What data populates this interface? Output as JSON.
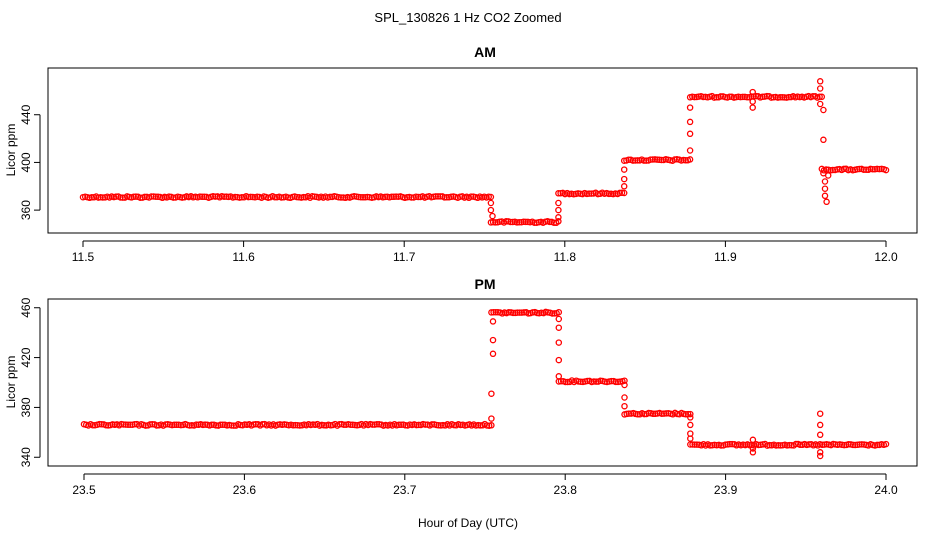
{
  "chart_data": [
    {
      "type": "scatter",
      "title": "AM",
      "ylabel": "Licor ppm",
      "xlim": [
        11.5,
        12.0
      ],
      "ylim": [
        345,
        475
      ],
      "x_ticks": [
        "11.5",
        "11.6",
        "11.7",
        "11.8",
        "11.9",
        "12.0"
      ],
      "x_tick_values": [
        11.5,
        11.6,
        11.7,
        11.8,
        11.9,
        12.0
      ],
      "y_ticks": [
        "360",
        "400",
        "440"
      ],
      "y_tick_values": [
        360,
        400,
        440
      ],
      "marker": "open-circle",
      "color": "#ff0000",
      "segments": [
        {
          "x_start": 11.5,
          "x_end": 11.754,
          "y": 371
        },
        {
          "x_start": 11.754,
          "x_end": 11.796,
          "y": 350
        },
        {
          "x_start": 11.796,
          "x_end": 11.837,
          "y": 374
        },
        {
          "x_start": 11.837,
          "x_end": 11.878,
          "y": 402
        },
        {
          "x_start": 11.878,
          "x_end": 11.96,
          "y": 455
        },
        {
          "x_start": 11.96,
          "x_end": 12.0,
          "y": 394
        }
      ],
      "transition_points": [
        {
          "x": 11.754,
          "y": 366
        },
        {
          "x": 11.754,
          "y": 360
        },
        {
          "x": 11.755,
          "y": 355
        },
        {
          "x": 11.796,
          "y": 354
        },
        {
          "x": 11.796,
          "y": 360
        },
        {
          "x": 11.796,
          "y": 366
        },
        {
          "x": 11.837,
          "x2": null,
          "y": 380
        },
        {
          "x": 11.837,
          "y": 386
        },
        {
          "x": 11.837,
          "y": 394
        },
        {
          "x": 11.878,
          "y": 410
        },
        {
          "x": 11.878,
          "y": 424
        },
        {
          "x": 11.878,
          "y": 434
        },
        {
          "x": 11.878,
          "y": 446
        },
        {
          "x": 11.917,
          "y": 459
        },
        {
          "x": 11.917,
          "y": 446
        },
        {
          "x": 11.917,
          "y": 451
        },
        {
          "x": 11.959,
          "y": 468
        },
        {
          "x": 11.959,
          "y": 462
        },
        {
          "x": 11.959,
          "y": 449
        },
        {
          "x": 11.961,
          "y": 444
        },
        {
          "x": 11.961,
          "y": 419
        },
        {
          "x": 11.961,
          "y": 391
        },
        {
          "x": 11.962,
          "y": 384
        },
        {
          "x": 11.962,
          "y": 378
        },
        {
          "x": 11.962,
          "y": 372
        },
        {
          "x": 11.963,
          "y": 367
        },
        {
          "x": 11.964,
          "y": 389
        }
      ]
    },
    {
      "type": "scatter",
      "title": "PM",
      "ylabel": "Licor ppm",
      "xlim": [
        23.5,
        24.0
      ],
      "ylim": [
        337,
        463
      ],
      "x_ticks": [
        "23.5",
        "23.6",
        "23.7",
        "23.8",
        "23.9",
        "24.0"
      ],
      "x_tick_values": [
        23.5,
        23.6,
        23.7,
        23.8,
        23.9,
        24.0
      ],
      "y_ticks": [
        "340",
        "380",
        "420",
        "460"
      ],
      "y_tick_values": [
        340,
        380,
        420,
        460
      ],
      "marker": "open-circle",
      "color": "#ff0000",
      "segments": [
        {
          "x_start": 23.5,
          "x_end": 23.754,
          "y": 366
        },
        {
          "x_start": 23.754,
          "x_end": 23.796,
          "y": 456
        },
        {
          "x_start": 23.796,
          "x_end": 23.837,
          "y": 401
        },
        {
          "x_start": 23.837,
          "x_end": 23.878,
          "y": 375
        },
        {
          "x_start": 23.878,
          "x_end": 24.0,
          "y": 350
        }
      ],
      "transition_points": [
        {
          "x": 23.754,
          "y": 371
        },
        {
          "x": 23.754,
          "y": 391
        },
        {
          "x": 23.755,
          "y": 423
        },
        {
          "x": 23.755,
          "y": 434
        },
        {
          "x": 23.755,
          "y": 449
        },
        {
          "x": 23.796,
          "y": 451
        },
        {
          "x": 23.796,
          "y": 444
        },
        {
          "x": 23.796,
          "y": 432
        },
        {
          "x": 23.796,
          "y": 418
        },
        {
          "x": 23.796,
          "y": 405
        },
        {
          "x": 23.837,
          "y": 398
        },
        {
          "x": 23.837,
          "y": 388
        },
        {
          "x": 23.837,
          "y": 381
        },
        {
          "x": 23.878,
          "y": 372
        },
        {
          "x": 23.878,
          "y": 366
        },
        {
          "x": 23.878,
          "y": 359
        },
        {
          "x": 23.878,
          "y": 355
        },
        {
          "x": 23.917,
          "y": 354
        },
        {
          "x": 23.917,
          "y": 344
        },
        {
          "x": 23.917,
          "y": 347
        },
        {
          "x": 23.959,
          "y": 375
        },
        {
          "x": 23.959,
          "y": 366
        },
        {
          "x": 23.959,
          "y": 358
        },
        {
          "x": 23.959,
          "y": 344
        },
        {
          "x": 23.959,
          "y": 341
        }
      ]
    }
  ],
  "figure": {
    "title": "SPL_130826  1 Hz CO2 Zoomed",
    "xlabel": "Hour of Day (UTC)"
  }
}
